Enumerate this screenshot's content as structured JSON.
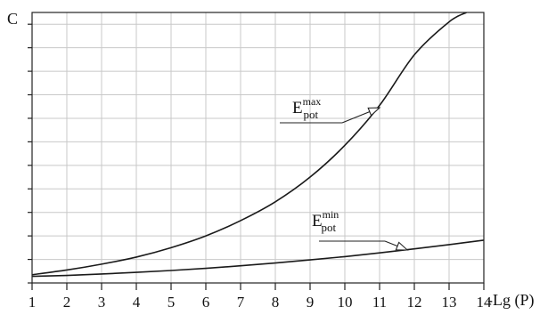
{
  "chart_data": {
    "type": "line",
    "title": "",
    "xlabel": "-Lg (P)",
    "ylabel": "C",
    "xlim": [
      1,
      14
    ],
    "x_ticks": [
      "1",
      "2",
      "3",
      "4",
      "5",
      "6",
      "7",
      "8",
      "9",
      "10",
      "11",
      "12",
      "13",
      "14"
    ],
    "ylim": [
      0,
      11.5
    ],
    "y_tick_count": 12,
    "grid": true,
    "y_tick_labels_shown": false,
    "series": [
      {
        "name": "E_pot^max",
        "color": "#1a1a1a",
        "x": [
          1,
          2,
          3,
          4,
          5,
          6,
          7,
          8,
          9,
          10,
          11,
          12,
          13,
          13.5
        ],
        "y": [
          0.35,
          0.55,
          0.8,
          1.1,
          1.5,
          2.0,
          2.65,
          3.45,
          4.5,
          5.85,
          7.55,
          9.7,
          11.1,
          11.5
        ]
      },
      {
        "name": "E_pot^min",
        "color": "#1a1a1a",
        "x": [
          1,
          2,
          3,
          4,
          5,
          6,
          7,
          8,
          9,
          10,
          11,
          12,
          13,
          14
        ],
        "y": [
          0.28,
          0.32,
          0.38,
          0.45,
          0.53,
          0.62,
          0.73,
          0.85,
          0.98,
          1.12,
          1.28,
          1.45,
          1.63,
          1.82
        ]
      }
    ],
    "annotations": [
      {
        "base": "E",
        "sub": "pot",
        "sup": "max",
        "points_to_series": "E_pot^max",
        "points_at": {
          "x": 11,
          "y": 7.45
        }
      },
      {
        "base": "E",
        "sub": "pot",
        "sup": "min",
        "points_to_series": "E_pot^min",
        "points_at": {
          "x": 11.8,
          "y": 1.4
        }
      }
    ]
  }
}
